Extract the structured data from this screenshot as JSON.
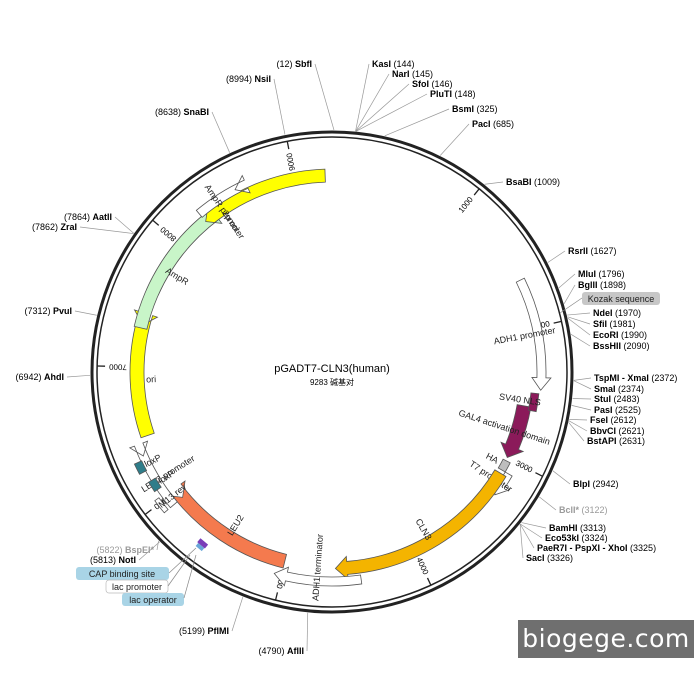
{
  "plasmid": {
    "name": "pGADT7-CLN3(human)",
    "size_label": "9283 碱基对",
    "total_bp": 9283
  },
  "ticks": [
    {
      "bp": 1000,
      "label": "1000"
    },
    {
      "bp": 2000,
      "label": "2000"
    },
    {
      "bp": 3000,
      "label": "3000"
    },
    {
      "bp": 4000,
      "label": "4000"
    },
    {
      "bp": 5000,
      "label": "5000"
    },
    {
      "bp": 6000,
      "label": "6000"
    },
    {
      "bp": 7000,
      "label": "7000"
    },
    {
      "bp": 8000,
      "label": "8000"
    },
    {
      "bp": 9000,
      "label": "9000"
    }
  ],
  "sites": [
    {
      "name": "SbfI",
      "pos": "(12)",
      "bp": 12
    },
    {
      "name": "KasI",
      "pos": "(144)",
      "bp": 144
    },
    {
      "name": "NarI",
      "pos": "(145)",
      "bp": 145
    },
    {
      "name": "SfoI",
      "pos": "(146)",
      "bp": 146
    },
    {
      "name": "PluTI",
      "pos": "(148)",
      "bp": 148
    },
    {
      "name": "BsmI",
      "pos": "(325)",
      "bp": 325
    },
    {
      "name": "PacI",
      "pos": "(685)",
      "bp": 685
    },
    {
      "name": "BsaBI",
      "pos": "(1009)",
      "bp": 1009
    },
    {
      "name": "RsrII",
      "pos": "(1627)",
      "bp": 1627
    },
    {
      "name": "MluI",
      "pos": "(1796)",
      "bp": 1796
    },
    {
      "name": "BglII",
      "pos": "(1898)",
      "bp": 1898
    },
    {
      "name": "NdeI",
      "pos": "(1970)",
      "bp": 1970
    },
    {
      "name": "SfiI",
      "pos": "(1981)",
      "bp": 1981
    },
    {
      "name": "EcoRI",
      "pos": "(1990)",
      "bp": 1990
    },
    {
      "name": "BssHII",
      "pos": "(2090)",
      "bp": 2090
    },
    {
      "name": "TspMI - XmaI",
      "pos": "(2372)",
      "bp": 2372
    },
    {
      "name": "SmaI",
      "pos": "(2374)",
      "bp": 2374
    },
    {
      "name": "StuI",
      "pos": "(2483)",
      "bp": 2483
    },
    {
      "name": "PasI",
      "pos": "(2525)",
      "bp": 2525
    },
    {
      "name": "FseI",
      "pos": "(2612)",
      "bp": 2612
    },
    {
      "name": "BbvCI",
      "pos": "(2621)",
      "bp": 2621
    },
    {
      "name": "BstAPI",
      "pos": "(2631)",
      "bp": 2631
    },
    {
      "name": "BlpI",
      "pos": "(2942)",
      "bp": 2942
    },
    {
      "name": "BclI*",
      "pos": "(3122)",
      "bp": 3122,
      "muted": true
    },
    {
      "name": "BamHI",
      "pos": "(3313)",
      "bp": 3313
    },
    {
      "name": "Eco53kI",
      "pos": "(3324)",
      "bp": 3324
    },
    {
      "name": "PaeR7I - PspXI - XhoI",
      "pos": "(3325)",
      "bp": 3325
    },
    {
      "name": "SacI",
      "pos": "(3326)",
      "bp": 3326
    },
    {
      "name": "AflII",
      "pos": "(4790)",
      "bp": 4790
    },
    {
      "name": "PflMI",
      "pos": "(5199)",
      "bp": 5199
    },
    {
      "name": "NotI",
      "pos": "(5813)",
      "bp": 5813
    },
    {
      "name": "BspEI*",
      "pos": "(5822)",
      "bp": 5822,
      "muted": true
    },
    {
      "name": "AhdI",
      "pos": "(6942)",
      "bp": 6942
    },
    {
      "name": "PvuI",
      "pos": "(7312)",
      "bp": 7312
    },
    {
      "name": "ZraI",
      "pos": "(7862)",
      "bp": 7862
    },
    {
      "name": "AatII",
      "pos": "(7864)",
      "bp": 7864
    },
    {
      "name": "SnaBI",
      "pos": "(8638)",
      "bp": 8638
    },
    {
      "name": "NsiI",
      "pos": "(8994)",
      "bp": 8994
    }
  ],
  "features": [
    {
      "name": "2μ ori",
      "color": "#ffff00"
    },
    {
      "name": "ADH1 promoter",
      "color": "#ffffff"
    },
    {
      "name": "GAL4 activation domain",
      "color": "#8b1a5a"
    },
    {
      "name": "SV40 NLS",
      "color": "#8b1a5a"
    },
    {
      "name": "HA",
      "color": "#bdbdbd"
    },
    {
      "name": "T7 promoter",
      "color": "#ffffff"
    },
    {
      "name": "CLN3",
      "color": "#f4b400"
    },
    {
      "name": "ADH1 terminator",
      "color": "#ffffff"
    },
    {
      "name": "LEU2",
      "color": "#f47a4e"
    },
    {
      "name": "LEU2 promoter",
      "color": "#ffffff"
    },
    {
      "name": "M13 rev",
      "color": "#ffffff"
    },
    {
      "name": "loxP",
      "color": "#2f7d8a"
    },
    {
      "name": "loxP",
      "color": "#2f7d8a"
    },
    {
      "name": "ori",
      "color": "#ffff00"
    },
    {
      "name": "AmpR",
      "color": "#c8f5c8"
    },
    {
      "name": "AmpR promoter",
      "color": "#ffffff"
    }
  ],
  "boxed_labels": {
    "kozak": "Kozak sequence",
    "cap": "CAP binding site",
    "lac_promoter": "lac promoter",
    "lac_operator": "lac operator"
  },
  "watermark": "biogege.com"
}
